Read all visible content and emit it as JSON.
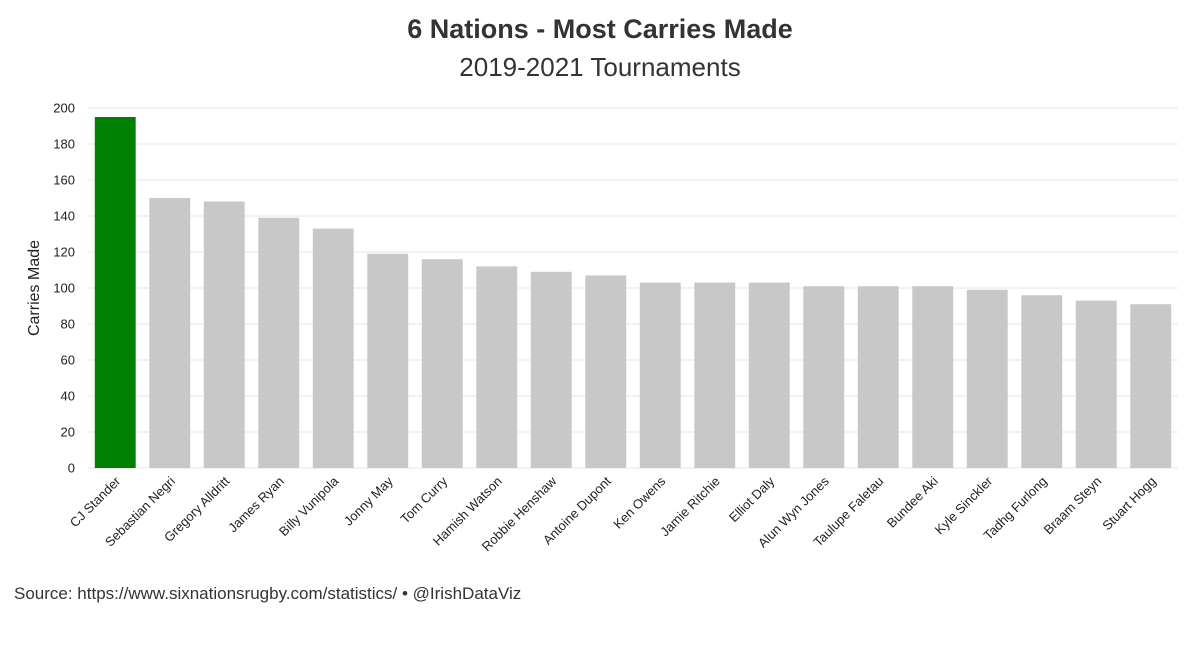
{
  "chart_data": {
    "type": "bar",
    "title": "6 Nations - Most Carries Made",
    "subtitle": "2019-2021 Tournaments",
    "xlabel": "",
    "ylabel": "Carries Made",
    "ylim": [
      0,
      200
    ],
    "yticks": [
      0,
      20,
      40,
      60,
      80,
      100,
      120,
      140,
      160,
      180,
      200
    ],
    "grid": true,
    "categories": [
      "CJ Stander",
      "Sebastian Negri",
      "Gregory Alldritt",
      "James Ryan",
      "Billy Vunipola",
      "Jonny May",
      "Tom Curry",
      "Hamish Watson",
      "Robbie Henshaw",
      "Antoine Dupont",
      "Ken Owens",
      "Jamie Ritchie",
      "Elliot Daly",
      "Alun Wyn Jones",
      "Taulupe Faletau",
      "Bundee Aki",
      "Kyle Sinckler",
      "Tadhg Furlong",
      "Braam Steyn",
      "Stuart Hogg"
    ],
    "values": [
      195,
      150,
      148,
      139,
      133,
      119,
      116,
      112,
      109,
      107,
      103,
      103,
      103,
      101,
      101,
      101,
      99,
      96,
      93,
      91
    ],
    "colors": {
      "highlight": "#008000",
      "default": "#c8c8c8",
      "grid": "#e6e6e6"
    },
    "highlight_index": 0
  },
  "source_text": "Source: https://www.sixnationsrugby.com/statistics/ • @IrishDataViz"
}
